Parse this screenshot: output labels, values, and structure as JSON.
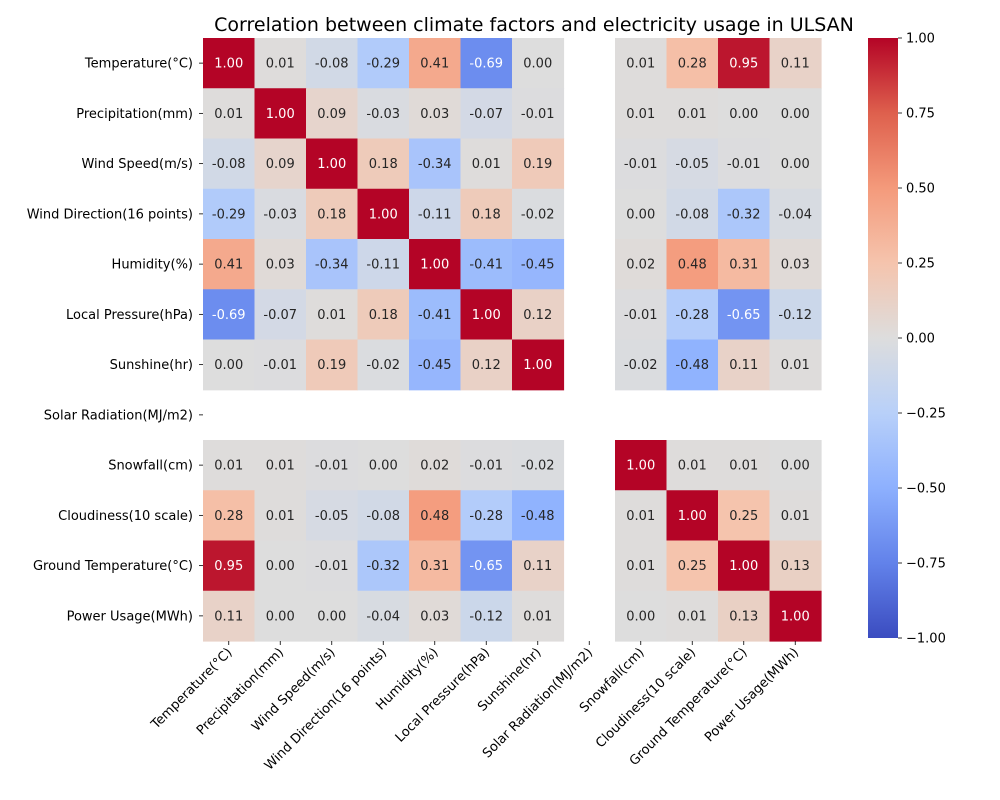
{
  "chart_data": {
    "type": "heatmap",
    "title": "Correlation between climate factors and electricity usage in ULSAN",
    "xlabel": "",
    "ylabel": "",
    "labels": [
      "Temperature(°C)",
      "Precipitation(mm)",
      "Wind Speed(m/s)",
      "Wind Direction(16 points)",
      "Humidity(%)",
      "Local Pressure(hPa)",
      "Sunshine(hr)",
      "Solar Radiation(MJ/m2)",
      "Snowfall(cm)",
      "Cloudiness(10 scale)",
      "Ground Temperature(°C)",
      "Power Usage(MWh)"
    ],
    "matrix": [
      [
        1.0,
        0.01,
        -0.08,
        -0.29,
        0.41,
        -0.69,
        0.0,
        null,
        0.01,
        0.28,
        0.95,
        0.11
      ],
      [
        0.01,
        1.0,
        0.09,
        -0.03,
        0.03,
        -0.07,
        -0.01,
        null,
        0.01,
        0.01,
        0.0,
        -0.0
      ],
      [
        -0.08,
        0.09,
        1.0,
        0.18,
        -0.34,
        0.01,
        0.19,
        null,
        -0.01,
        -0.05,
        -0.01,
        -0.0
      ],
      [
        -0.29,
        -0.03,
        0.18,
        1.0,
        -0.11,
        0.18,
        -0.02,
        null,
        0.0,
        -0.08,
        -0.32,
        -0.04
      ],
      [
        0.41,
        0.03,
        -0.34,
        -0.11,
        1.0,
        -0.41,
        -0.45,
        null,
        0.02,
        0.48,
        0.31,
        0.03
      ],
      [
        -0.69,
        -0.07,
        0.01,
        0.18,
        -0.41,
        1.0,
        0.12,
        null,
        -0.01,
        -0.28,
        -0.65,
        -0.12
      ],
      [
        0.0,
        -0.01,
        0.19,
        -0.02,
        -0.45,
        0.12,
        1.0,
        null,
        -0.02,
        -0.48,
        0.11,
        0.01
      ],
      [
        null,
        null,
        null,
        null,
        null,
        null,
        null,
        null,
        null,
        null,
        null,
        null
      ],
      [
        0.01,
        0.01,
        -0.01,
        0.0,
        0.02,
        -0.01,
        -0.02,
        null,
        1.0,
        0.01,
        0.01,
        -0.0
      ],
      [
        0.28,
        0.01,
        -0.05,
        -0.08,
        0.48,
        -0.28,
        -0.48,
        null,
        0.01,
        1.0,
        0.25,
        0.01
      ],
      [
        0.95,
        0.0,
        -0.01,
        -0.32,
        0.31,
        -0.65,
        0.11,
        null,
        0.01,
        0.25,
        1.0,
        0.13
      ],
      [
        0.11,
        -0.0,
        -0.0,
        -0.04,
        0.03,
        -0.12,
        0.01,
        null,
        -0.0,
        0.01,
        0.13,
        1.0
      ]
    ],
    "vmin": -1.0,
    "vmax": 1.0,
    "colormap": "coolwarm",
    "colorbar_ticks": [
      "-1.00",
      "-0.75",
      "-0.50",
      "-0.25",
      "0.00",
      "0.25",
      "0.50",
      "0.75",
      "1.00"
    ],
    "annotations_format": "2 decimals"
  }
}
